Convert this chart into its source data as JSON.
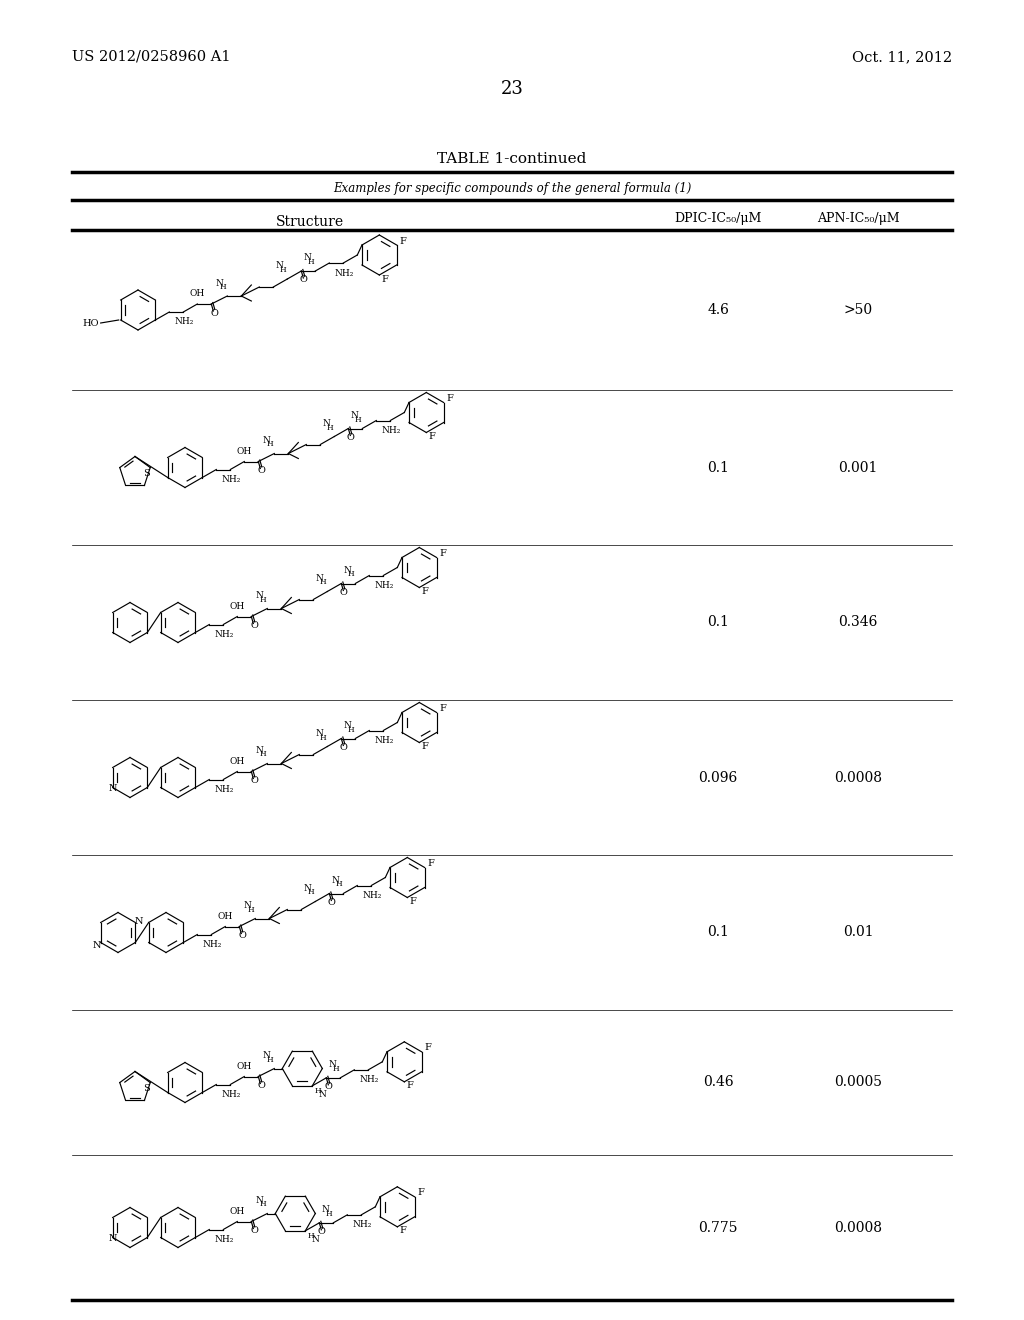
{
  "background_color": "#ffffff",
  "page_header_left": "US 2012/0258960 A1",
  "page_header_right": "Oct. 11, 2012",
  "page_number": "23",
  "table_title": "TABLE 1-continued",
  "table_subtitle": "Examples for specific compounds of the general formula (1)",
  "col1_header": "Structure",
  "col2_header": "DPIC-IC50/μM",
  "col3_header": "APN-IC50/μM",
  "rows": [
    {
      "dpic": "4.6",
      "apn": ">50"
    },
    {
      "dpic": "0.1",
      "apn": "0.001"
    },
    {
      "dpic": "0.1",
      "apn": "0.346"
    },
    {
      "dpic": "0.096",
      "apn": "0.0008"
    },
    {
      "dpic": "0.1",
      "apn": "0.01"
    },
    {
      "dpic": "0.46",
      "apn": "0.0005"
    },
    {
      "dpic": "0.775",
      "apn": "0.0008"
    }
  ]
}
